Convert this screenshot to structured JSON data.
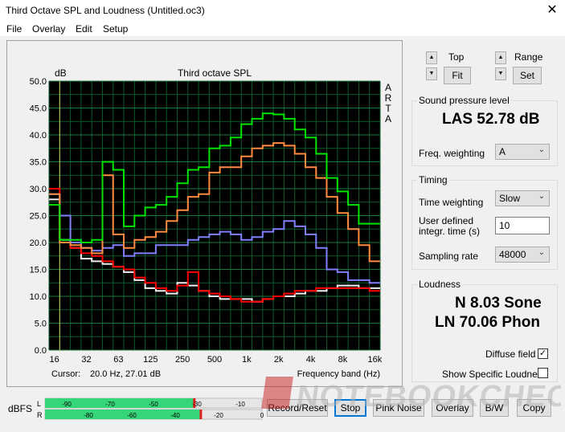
{
  "window": {
    "title": "Third Octave SPL and Loudness (Untitled.oc3)",
    "close_glyph": "✕"
  },
  "menu": {
    "file": "File",
    "overlay": "Overlay",
    "edit": "Edit",
    "setup": "Setup"
  },
  "chart": {
    "unit_label": "dB",
    "title": "Third octave SPL",
    "arta_letters": [
      "A",
      "R",
      "T",
      "A"
    ],
    "cursor_label": "Cursor:",
    "cursor_value": "20.0 Hz, 27.01 dB",
    "freq_band_label": "Frequency band (Hz)"
  },
  "chart_data": {
    "type": "line",
    "title": "Third octave SPL",
    "ylabel": "dB",
    "xlabel": "Frequency band (Hz)",
    "ylim": [
      0,
      50
    ],
    "y_ticks": [
      "0.0",
      "5.0",
      "10.0",
      "15.0",
      "20.0",
      "25.0",
      "30.0",
      "35.0",
      "40.0",
      "45.0",
      "50.0"
    ],
    "x_ticks": [
      "16",
      "32",
      "63",
      "125",
      "250",
      "500",
      "1k",
      "2k",
      "4k",
      "8k",
      "16k"
    ],
    "bands": [
      "16",
      "20",
      "25",
      "31.5",
      "40",
      "50",
      "63",
      "80",
      "100",
      "125",
      "160",
      "200",
      "250",
      "315",
      "400",
      "500",
      "630",
      "800",
      "1k",
      "1.25k",
      "1.6k",
      "2k",
      "2.5k",
      "3.15k",
      "4k",
      "5k",
      "6.3k",
      "8k",
      "10k",
      "12.5k",
      "16k"
    ],
    "grid": true,
    "series": [
      {
        "color": "#00e400",
        "values": [
          27.0,
          20.5,
          20.5,
          20.0,
          20.5,
          35.0,
          33.5,
          23.0,
          25.0,
          26.5,
          27.0,
          28.5,
          31.0,
          33.5,
          34.0,
          37.5,
          38.0,
          39.5,
          42.0,
          43.0,
          44.0,
          43.8,
          43.0,
          41.0,
          39.5,
          36.5,
          32.0,
          29.5,
          27.0,
          23.5,
          23.5
        ]
      },
      {
        "color": "#ff8c40",
        "values": [
          29.0,
          20.0,
          19.5,
          19.0,
          18.0,
          32.5,
          21.5,
          19.0,
          20.5,
          21.0,
          22.0,
          24.0,
          26.0,
          28.5,
          29.0,
          33.0,
          34.0,
          34.0,
          36.0,
          37.5,
          38.0,
          38.5,
          38.0,
          36.5,
          34.0,
          32.0,
          28.5,
          25.5,
          22.5,
          19.5,
          16.5
        ]
      },
      {
        "color": "#8080ff",
        "values": [
          29.0,
          25.0,
          20.0,
          19.0,
          18.5,
          19.0,
          19.5,
          17.5,
          18.0,
          18.0,
          19.5,
          19.5,
          19.5,
          20.5,
          21.0,
          21.5,
          22.0,
          21.5,
          20.5,
          21.0,
          22.0,
          22.5,
          24.0,
          23.0,
          21.5,
          19.0,
          15.0,
          14.5,
          13.0,
          13.0,
          12.5
        ]
      },
      {
        "color": "#ff0000",
        "values": [
          30.0,
          20.0,
          19.0,
          18.0,
          17.5,
          16.5,
          15.5,
          15.0,
          13.5,
          12.5,
          11.5,
          11.0,
          12.0,
          14.5,
          11.0,
          10.5,
          10.0,
          9.5,
          9.0,
          9.0,
          9.5,
          10.0,
          10.5,
          11.0,
          11.0,
          11.5,
          11.5,
          11.5,
          11.5,
          11.5,
          11.0
        ]
      },
      {
        "color": "#f0f0f0",
        "values": [
          28.0,
          20.5,
          19.0,
          17.0,
          16.5,
          16.0,
          15.5,
          14.5,
          13.0,
          11.5,
          11.0,
          10.5,
          12.5,
          12.0,
          11.0,
          10.0,
          9.5,
          9.5,
          9.5,
          9.0,
          9.5,
          10.0,
          10.0,
          10.5,
          11.0,
          11.0,
          11.5,
          12.0,
          12.0,
          11.5,
          11.5
        ]
      }
    ]
  },
  "controls": {
    "top_label": "Top",
    "fit_button": "Fit",
    "range_label": "Range",
    "set_button": "Set",
    "spin_up": "▲",
    "spin_down": "▼"
  },
  "spl": {
    "group_title": "Sound pressure level",
    "value": "LAS 52.78 dB",
    "freq_weighting_label": "Freq. weighting",
    "freq_weighting_value": "A"
  },
  "timing": {
    "group_title": "Timing",
    "time_weighting_label": "Time weighting",
    "time_weighting_value": "Slow",
    "integr_label_1": "User defined",
    "integr_label_2": "integr. time (s)",
    "integr_value": "10",
    "sampling_rate_label": "Sampling rate",
    "sampling_rate_value": "48000"
  },
  "loudness": {
    "group_title": "Loudness",
    "sone": "N 8.03 Sone",
    "phon": "LN 70.06 Phon",
    "diffuse_field_label": "Diffuse field",
    "diffuse_field_checked": true,
    "specific_loudness_label": "Show Specific Loudness",
    "specific_loudness_checked": false,
    "check_glyph": "✓"
  },
  "meter": {
    "label": "dBFS",
    "left_channel": "L",
    "right_channel": "R",
    "left_ticks": [
      "-90",
      "-70",
      "-50",
      "-30",
      "-10"
    ],
    "right_ticks": [
      "-80",
      "-60",
      "-40",
      "-20",
      "0"
    ],
    "left_level_db": -31,
    "right_level_db": -28
  },
  "buttons": {
    "record_reset": "Record/Reset",
    "stop": "Stop",
    "pink_noise": "Pink Noise",
    "overlay": "Overlay",
    "bw": "B/W",
    "copy": "Copy"
  },
  "watermark": {
    "text": "NOTEBOOKCHECK"
  }
}
